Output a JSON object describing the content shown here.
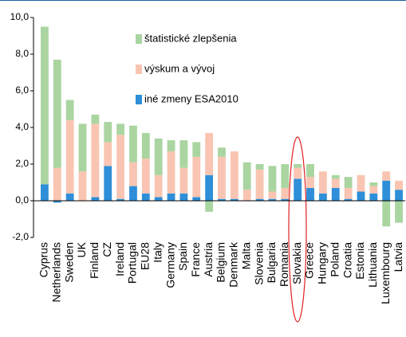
{
  "chart_data": {
    "type": "stacked_bar",
    "categories": [
      "Cyprus",
      "Netherlands",
      "Sweden",
      "UK",
      "Finland",
      "CZ",
      "Ireland",
      "Portugal",
      "EU28",
      "Italy",
      "Germany",
      "Spain",
      "France",
      "Austria",
      "Belgium",
      "Denmark",
      "Malta",
      "Slovenia",
      "Bulgaria",
      "Romania",
      "Slovakia",
      "Greece",
      "Hungary",
      "Poland",
      "Croatia",
      "Estonia",
      "Lithuania",
      "Luxembourg",
      "Latvia"
    ],
    "series": [
      {
        "name": "iné zmeny ESA2010",
        "color": "#2e8fd8",
        "values": [
          0.9,
          -0.1,
          0.4,
          0.0,
          0.2,
          1.9,
          0.1,
          0.8,
          0.4,
          0.2,
          0.4,
          0.4,
          0.2,
          1.4,
          0.1,
          0.1,
          0.0,
          0.1,
          0.1,
          0.1,
          1.2,
          0.7,
          0.4,
          0.7,
          0.1,
          0.5,
          0.4,
          1.1,
          0.6
        ]
      },
      {
        "name": "výskum a vývoj",
        "color": "#f9c5b2",
        "values": [
          0.0,
          1.8,
          4.0,
          1.6,
          4.0,
          1.3,
          3.5,
          1.3,
          1.9,
          1.2,
          2.3,
          1.4,
          2.2,
          2.3,
          2.3,
          2.6,
          0.6,
          1.6,
          0.4,
          0.6,
          0.6,
          0.6,
          1.2,
          0.5,
          0.6,
          0.9,
          0.4,
          0.5,
          0.5
        ]
      },
      {
        "name": "štatistické zlepšenia",
        "color": "#aad5a1",
        "values": [
          8.6,
          5.9,
          1.1,
          2.6,
          0.5,
          1.1,
          0.6,
          2.0,
          1.4,
          2.0,
          0.6,
          1.5,
          0.8,
          -0.6,
          0.5,
          0.0,
          1.5,
          0.3,
          1.4,
          1.3,
          0.2,
          0.7,
          0.0,
          0.2,
          0.6,
          0.0,
          0.2,
          -1.4,
          -1.2
        ]
      }
    ],
    "ylim": [
      -2,
      10
    ],
    "yticks": [
      {
        "value": -2,
        "label": "-2,0"
      },
      {
        "value": 0,
        "label": "0,0"
      },
      {
        "value": 2,
        "label": "2,0"
      },
      {
        "value": 4,
        "label": "4,0"
      },
      {
        "value": 6,
        "label": "6,0"
      },
      {
        "value": 8,
        "label": "8,0"
      },
      {
        "value": 10,
        "label": "10,0"
      }
    ]
  }
}
